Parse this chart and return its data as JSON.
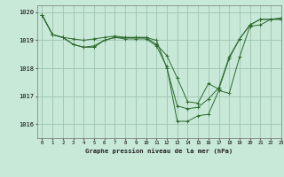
{
  "title": "Graphe pression niveau de la mer (hPa)",
  "background_color": "#c8e8d8",
  "grid_color": "#9dc4b0",
  "line_color": "#2d6a2d",
  "xlim": [
    -0.5,
    23
  ],
  "ylim": [
    1015.5,
    1020.25
  ],
  "yticks": [
    1016,
    1017,
    1018,
    1019,
    1020
  ],
  "xticks": [
    0,
    1,
    2,
    3,
    4,
    5,
    6,
    7,
    8,
    9,
    10,
    11,
    12,
    13,
    14,
    15,
    16,
    17,
    18,
    19,
    20,
    21,
    22,
    23
  ],
  "series": [
    [
      1019.9,
      1019.2,
      1019.1,
      1018.85,
      1018.75,
      1018.75,
      1019.0,
      1019.1,
      1019.05,
      1019.05,
      1019.05,
      1018.8,
      1018.05,
      1016.1,
      1016.1,
      1016.3,
      1016.35,
      1017.2,
      1017.1,
      1018.4,
      1019.5,
      1019.55,
      1019.75,
      1019.8
    ],
    [
      1019.9,
      1019.2,
      1019.1,
      1019.05,
      1019.0,
      1019.05,
      1019.1,
      1019.15,
      1019.1,
      1019.1,
      1019.1,
      1019.0,
      1018.0,
      1016.65,
      1016.55,
      1016.6,
      1016.9,
      1017.3,
      1018.4,
      1019.05,
      1019.55,
      1019.75,
      1019.75,
      1019.75
    ],
    [
      1019.9,
      1019.2,
      1019.1,
      1018.85,
      1018.75,
      1018.8,
      1019.0,
      1019.1,
      1019.1,
      1019.1,
      1019.1,
      1018.85,
      1018.45,
      1017.65,
      1016.8,
      1016.75,
      1017.45,
      1017.25,
      1018.35,
      1019.05,
      1019.55,
      1019.75,
      1019.75,
      1019.75
    ]
  ]
}
